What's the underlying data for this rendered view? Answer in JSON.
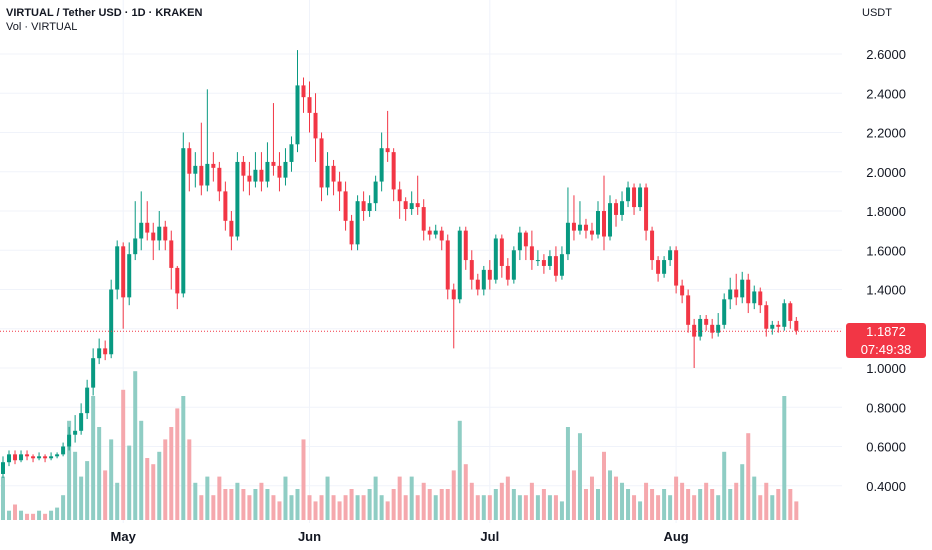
{
  "header": {
    "title": "VIRTUAL / Tether USD · 1D · KRAKEN",
    "volume_label": "Vol · VIRTUAL",
    "currency": "USDT"
  },
  "last_price": {
    "value": "1.1872",
    "countdown": "07:49:38",
    "color": "#f23645"
  },
  "colors": {
    "up": "#089981",
    "down": "#f23645",
    "volume_up": "#8fcdc4",
    "volume_down": "#f5a8ad",
    "grid": "#f0f3fa"
  },
  "chart_data": {
    "type": "candlestick",
    "interval": "1D",
    "y_ticks": [
      "2.6000",
      "2.4000",
      "2.2000",
      "2.0000",
      "1.8000",
      "1.6000",
      "1.4000",
      "1.2000",
      "1.0000",
      "0.8000",
      "0.6000",
      "0.4000"
    ],
    "ylim": [
      0.2,
      2.7
    ],
    "x_ticks": [
      {
        "label": "May",
        "index": 20
      },
      {
        "label": "Jun",
        "index": 51
      },
      {
        "label": "Jul",
        "index": 81
      },
      {
        "label": "Aug",
        "index": 112
      }
    ],
    "grid": true,
    "volume_overlay": true,
    "candles": [
      [
        0.46,
        0.52,
        0.44,
        0.55
      ],
      [
        0.52,
        0.56,
        0.5,
        0.58
      ],
      [
        0.56,
        0.53,
        0.51,
        0.58
      ],
      [
        0.53,
        0.56,
        0.52,
        0.58
      ],
      [
        0.56,
        0.55,
        0.53,
        0.58
      ],
      [
        0.55,
        0.54,
        0.52,
        0.56
      ],
      [
        0.54,
        0.55,
        0.53,
        0.57
      ],
      [
        0.55,
        0.54,
        0.52,
        0.56
      ],
      [
        0.54,
        0.55,
        0.53,
        0.57
      ],
      [
        0.55,
        0.56,
        0.54,
        0.57
      ],
      [
        0.56,
        0.6,
        0.55,
        0.62
      ],
      [
        0.6,
        0.66,
        0.58,
        0.7
      ],
      [
        0.66,
        0.68,
        0.62,
        0.76
      ],
      [
        0.68,
        0.77,
        0.66,
        0.82
      ],
      [
        0.77,
        0.9,
        0.74,
        0.94
      ],
      [
        0.9,
        1.05,
        0.86,
        1.1
      ],
      [
        1.05,
        1.1,
        1.02,
        1.15
      ],
      [
        1.1,
        1.07,
        1.04,
        1.14
      ],
      [
        1.07,
        1.4,
        1.05,
        1.45
      ],
      [
        1.4,
        1.62,
        1.35,
        1.65
      ],
      [
        1.62,
        1.36,
        1.2,
        1.64
      ],
      [
        1.36,
        1.58,
        1.32,
        1.64
      ],
      [
        1.58,
        1.66,
        1.55,
        1.85
      ],
      [
        1.66,
        1.74,
        1.6,
        1.9
      ],
      [
        1.74,
        1.69,
        1.65,
        1.85
      ],
      [
        1.69,
        1.65,
        1.55,
        1.74
      ],
      [
        1.65,
        1.72,
        1.6,
        1.8
      ],
      [
        1.72,
        1.65,
        1.6,
        1.75
      ],
      [
        1.65,
        1.51,
        1.4,
        1.7
      ],
      [
        1.51,
        1.38,
        1.3,
        1.52
      ],
      [
        1.38,
        2.12,
        1.36,
        2.2
      ],
      [
        2.12,
        1.99,
        1.9,
        2.15
      ],
      [
        1.99,
        2.03,
        1.92,
        2.1
      ],
      [
        2.03,
        1.93,
        1.88,
        2.25
      ],
      [
        1.93,
        2.04,
        1.9,
        2.42
      ],
      [
        2.04,
        2.02,
        1.95,
        2.1
      ],
      [
        2.02,
        1.9,
        1.85,
        2.05
      ],
      [
        1.9,
        1.75,
        1.7,
        1.95
      ],
      [
        1.75,
        1.67,
        1.6,
        1.8
      ],
      [
        1.67,
        2.05,
        1.65,
        2.1
      ],
      [
        2.05,
        1.98,
        1.9,
        2.08
      ],
      [
        1.98,
        1.95,
        1.88,
        2.05
      ],
      [
        1.95,
        2.01,
        1.92,
        2.1
      ],
      [
        2.01,
        1.95,
        1.9,
        2.1
      ],
      [
        1.95,
        2.05,
        1.92,
        2.15
      ],
      [
        2.05,
        2.03,
        1.98,
        2.35
      ],
      [
        2.03,
        1.97,
        1.9,
        2.1
      ],
      [
        1.97,
        2.05,
        1.93,
        2.12
      ],
      [
        2.05,
        2.14,
        2.0,
        2.18
      ],
      [
        2.14,
        2.44,
        2.1,
        2.62
      ],
      [
        2.44,
        2.38,
        2.3,
        2.48
      ],
      [
        2.38,
        2.3,
        2.2,
        2.46
      ],
      [
        2.3,
        2.17,
        2.05,
        2.4
      ],
      [
        2.17,
        1.92,
        1.85,
        2.2
      ],
      [
        1.92,
        2.03,
        1.88,
        2.1
      ],
      [
        2.03,
        1.95,
        1.88,
        2.06
      ],
      [
        1.95,
        1.9,
        1.8,
        2.0
      ],
      [
        1.9,
        1.75,
        1.7,
        1.95
      ],
      [
        1.75,
        1.63,
        1.6,
        1.78
      ],
      [
        1.63,
        1.85,
        1.6,
        1.88
      ],
      [
        1.85,
        1.8,
        1.75,
        1.9
      ],
      [
        1.8,
        1.84,
        1.77,
        1.88
      ],
      [
        1.84,
        1.95,
        1.8,
        1.98
      ],
      [
        1.95,
        2.12,
        1.9,
        2.2
      ],
      [
        2.12,
        2.1,
        2.05,
        2.31
      ],
      [
        2.1,
        1.91,
        1.85,
        2.12
      ],
      [
        1.91,
        1.85,
        1.76,
        1.95
      ],
      [
        1.85,
        1.81,
        1.75,
        1.87
      ],
      [
        1.81,
        1.84,
        1.78,
        1.9
      ],
      [
        1.84,
        1.82,
        1.78,
        1.98
      ],
      [
        1.82,
        1.7,
        1.65,
        1.86
      ],
      [
        1.7,
        1.68,
        1.65,
        1.72
      ],
      [
        1.68,
        1.7,
        1.66,
        1.73
      ],
      [
        1.7,
        1.65,
        1.6,
        1.72
      ],
      [
        1.65,
        1.4,
        1.35,
        1.68
      ],
      [
        1.4,
        1.35,
        1.1,
        1.43
      ],
      [
        1.35,
        1.7,
        1.33,
        1.72
      ],
      [
        1.7,
        1.55,
        1.5,
        1.72
      ],
      [
        1.55,
        1.45,
        1.4,
        1.6
      ],
      [
        1.45,
        1.4,
        1.37,
        1.48
      ],
      [
        1.4,
        1.5,
        1.37,
        1.52
      ],
      [
        1.5,
        1.45,
        1.4,
        1.55
      ],
      [
        1.45,
        1.66,
        1.43,
        1.68
      ],
      [
        1.66,
        1.52,
        1.46,
        1.68
      ],
      [
        1.52,
        1.45,
        1.42,
        1.56
      ],
      [
        1.45,
        1.6,
        1.43,
        1.62
      ],
      [
        1.6,
        1.69,
        1.55,
        1.72
      ],
      [
        1.69,
        1.62,
        1.55,
        1.7
      ],
      [
        1.62,
        1.55,
        1.5,
        1.7
      ],
      [
        1.55,
        1.55,
        1.52,
        1.6
      ],
      [
        1.55,
        1.52,
        1.48,
        1.58
      ],
      [
        1.52,
        1.57,
        1.5,
        1.6
      ],
      [
        1.57,
        1.47,
        1.44,
        1.62
      ],
      [
        1.47,
        1.58,
        1.45,
        1.62
      ],
      [
        1.58,
        1.74,
        1.55,
        1.92
      ],
      [
        1.74,
        1.7,
        1.65,
        1.88
      ],
      [
        1.7,
        1.73,
        1.68,
        1.85
      ],
      [
        1.73,
        1.7,
        1.66,
        1.76
      ],
      [
        1.7,
        1.68,
        1.65,
        1.74
      ],
      [
        1.68,
        1.8,
        1.66,
        1.85
      ],
      [
        1.8,
        1.67,
        1.6,
        1.98
      ],
      [
        1.67,
        1.84,
        1.65,
        1.88
      ],
      [
        1.84,
        1.78,
        1.72,
        1.86
      ],
      [
        1.78,
        1.85,
        1.75,
        1.9
      ],
      [
        1.85,
        1.92,
        1.82,
        1.95
      ],
      [
        1.92,
        1.82,
        1.78,
        1.94
      ],
      [
        1.82,
        1.92,
        1.8,
        1.94
      ],
      [
        1.92,
        1.7,
        1.65,
        1.94
      ],
      [
        1.7,
        1.55,
        1.5,
        1.72
      ],
      [
        1.55,
        1.48,
        1.44,
        1.57
      ],
      [
        1.48,
        1.55,
        1.46,
        1.57
      ],
      [
        1.55,
        1.6,
        1.52,
        1.62
      ],
      [
        1.6,
        1.42,
        1.38,
        1.62
      ],
      [
        1.42,
        1.37,
        1.33,
        1.45
      ],
      [
        1.37,
        1.22,
        1.18,
        1.4
      ],
      [
        1.22,
        1.16,
        1.0,
        1.25
      ],
      [
        1.16,
        1.25,
        1.14,
        1.27
      ],
      [
        1.25,
        1.22,
        1.19,
        1.27
      ],
      [
        1.22,
        1.18,
        1.15,
        1.25
      ],
      [
        1.18,
        1.22,
        1.16,
        1.28
      ],
      [
        1.22,
        1.35,
        1.2,
        1.38
      ],
      [
        1.35,
        1.4,
        1.3,
        1.46
      ],
      [
        1.4,
        1.36,
        1.32,
        1.48
      ],
      [
        1.36,
        1.45,
        1.33,
        1.49
      ],
      [
        1.45,
        1.33,
        1.28,
        1.48
      ],
      [
        1.33,
        1.39,
        1.3,
        1.42
      ],
      [
        1.39,
        1.32,
        1.28,
        1.41
      ],
      [
        1.32,
        1.2,
        1.16,
        1.34
      ],
      [
        1.2,
        1.22,
        1.17,
        1.24
      ],
      [
        1.22,
        1.21,
        1.18,
        1.24
      ],
      [
        1.21,
        1.33,
        1.19,
        1.35
      ],
      [
        1.33,
        1.24,
        1.2,
        1.34
      ],
      [
        1.24,
        1.19,
        1.17,
        1.26
      ]
    ],
    "volume": [
      14,
      3,
      5,
      3,
      2,
      2,
      3,
      2,
      3,
      4,
      8,
      32,
      22,
      14,
      19,
      40,
      30,
      16,
      26,
      12,
      42,
      24,
      48,
      32,
      20,
      18,
      22,
      26,
      30,
      36,
      40,
      26,
      12,
      8,
      14,
      8,
      14,
      10,
      10,
      12,
      10,
      8,
      10,
      12,
      10,
      8,
      6,
      14,
      8,
      10,
      26,
      8,
      6,
      8,
      14,
      8,
      6,
      8,
      10,
      8,
      8,
      10,
      14,
      8,
      6,
      10,
      14,
      8,
      14,
      8,
      12,
      10,
      8,
      10,
      10,
      16,
      32,
      18,
      12,
      8,
      8,
      8,
      10,
      12,
      14,
      10,
      8,
      8,
      12,
      8,
      10,
      8,
      8,
      6,
      30,
      16,
      28,
      10,
      14,
      10,
      22,
      16,
      14,
      12,
      10,
      8,
      6,
      12,
      10,
      8,
      10,
      8,
      14,
      12,
      10,
      8,
      10,
      12,
      10,
      8,
      22,
      10,
      12,
      18,
      28,
      14,
      8,
      12,
      8,
      10,
      40,
      10,
      6
    ]
  }
}
